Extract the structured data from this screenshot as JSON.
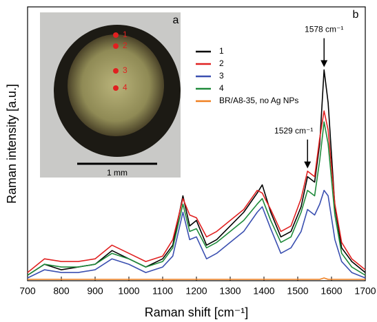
{
  "chart_data": {
    "type": "line",
    "x_label": "Raman shift [cm⁻¹]",
    "y_label": "Raman intensity [a.u.]",
    "panel_label": "b",
    "x": [
      700,
      750,
      800,
      850,
      900,
      950,
      1000,
      1050,
      1100,
      1130,
      1160,
      1180,
      1200,
      1230,
      1260,
      1300,
      1340,
      1380,
      1395,
      1420,
      1450,
      1480,
      1510,
      1529,
      1550,
      1565,
      1578,
      1590,
      1610,
      1630,
      1660,
      1700
    ],
    "series": [
      {
        "name": "1",
        "color": "#000000",
        "values": [
          2,
          6,
          4,
          5,
          6,
          11,
          8,
          5,
          8,
          13,
          31,
          20,
          22,
          13,
          15,
          20,
          25,
          32,
          35,
          25,
          16,
          18,
          27,
          38,
          36,
          50,
          77,
          65,
          27,
          12,
          7,
          3
        ]
      },
      {
        "name": "2",
        "color": "#e02020",
        "values": [
          3,
          8,
          7,
          7,
          8,
          13,
          10,
          7,
          9,
          15,
          30,
          24,
          23,
          16,
          18,
          22,
          26,
          33,
          32,
          26,
          18,
          20,
          30,
          40,
          38,
          52,
          62,
          55,
          28,
          14,
          8,
          4
        ]
      },
      {
        "name": "3",
        "color": "#3a4fb0",
        "values": [
          1,
          4,
          3,
          3,
          4,
          8,
          6,
          3,
          5,
          9,
          25,
          15,
          16,
          8,
          10,
          14,
          18,
          25,
          27,
          19,
          10,
          12,
          18,
          26,
          24,
          28,
          33,
          31,
          15,
          7,
          3,
          1
        ]
      },
      {
        "name": "4",
        "color": "#1e8a3a",
        "values": [
          2,
          6,
          5,
          5,
          6,
          10,
          8,
          5,
          7,
          12,
          28,
          18,
          19,
          12,
          14,
          18,
          22,
          28,
          30,
          22,
          14,
          16,
          25,
          33,
          31,
          44,
          58,
          50,
          24,
          10,
          5,
          2
        ]
      },
      {
        "name": "BR/A8-35, no Ag NPs",
        "color": "#f08020",
        "values": [
          0.5,
          0.5,
          0.5,
          0.5,
          0.5,
          0.5,
          0.5,
          0.5,
          0.5,
          0.5,
          0.5,
          0.5,
          0.5,
          0.5,
          0.5,
          0.5,
          0.5,
          0.5,
          0.5,
          0.5,
          0.5,
          0.5,
          0.5,
          0.5,
          0.5,
          0.5,
          1,
          0.5,
          0.5,
          0.5,
          0.5,
          0.5
        ]
      }
    ],
    "xlim": [
      700,
      1700
    ],
    "xticks": [
      700,
      800,
      900,
      1000,
      1100,
      1200,
      1300,
      1400,
      1500,
      1600,
      1700
    ],
    "ylim": [
      0,
      100
    ],
    "annotations": [
      {
        "text": "1578 cm⁻¹",
        "x": 1578,
        "y": 77
      },
      {
        "text": "1529 cm⁻¹",
        "x": 1529,
        "y": 40
      }
    ],
    "inset": {
      "panel_label": "a",
      "points": [
        "1",
        "2",
        "3",
        "4"
      ],
      "scale_bar": "1 mm"
    }
  }
}
